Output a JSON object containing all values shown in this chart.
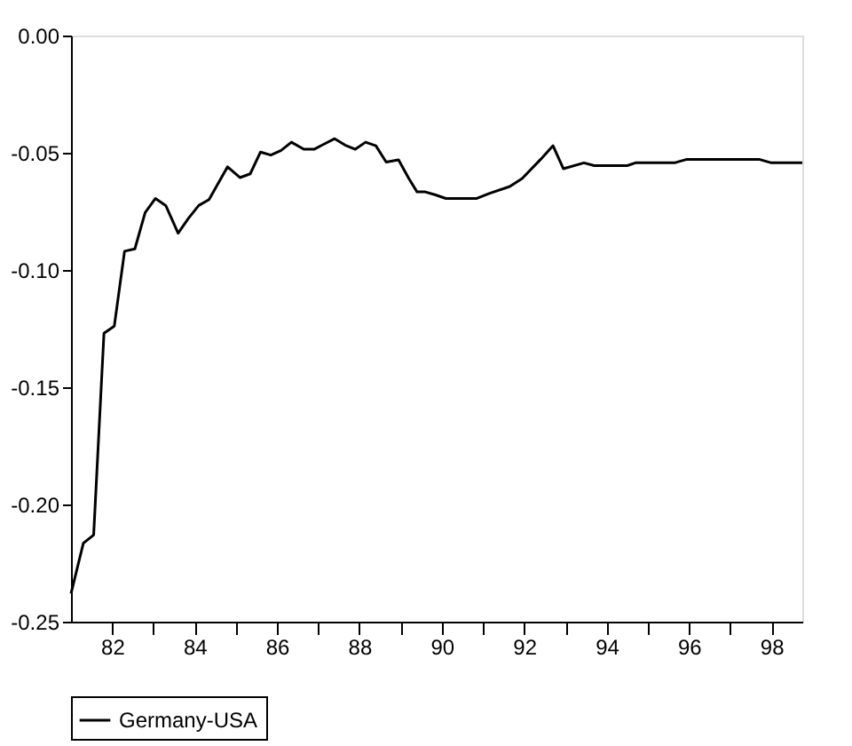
{
  "chart_data": {
    "type": "line",
    "x": [
      81.0,
      81.3,
      81.55,
      81.8,
      82.05,
      82.3,
      82.55,
      82.8,
      83.05,
      83.3,
      83.6,
      83.85,
      84.1,
      84.35,
      84.8,
      85.1,
      85.35,
      85.6,
      85.85,
      86.1,
      86.35,
      86.65,
      86.9,
      87.1,
      87.4,
      87.65,
      87.9,
      88.15,
      88.4,
      88.65,
      88.95,
      89.2,
      89.4,
      89.6,
      89.85,
      90.1,
      90.85,
      91.15,
      91.65,
      91.95,
      92.4,
      92.7,
      92.95,
      93.45,
      93.7,
      94.5,
      94.7,
      95.65,
      95.95,
      97.7,
      98.0,
      98.75
    ],
    "series": [
      {
        "name": "Germany-USA",
        "color": "#000000",
        "values": [
          -0.238,
          -0.2165,
          -0.213,
          -0.127,
          -0.124,
          -0.092,
          -0.091,
          -0.0755,
          -0.0695,
          -0.0725,
          -0.0843,
          -0.078,
          -0.0725,
          -0.07,
          -0.056,
          -0.0606,
          -0.059,
          -0.0497,
          -0.051,
          -0.049,
          -0.0455,
          -0.0485,
          -0.0485,
          -0.0467,
          -0.044,
          -0.0467,
          -0.0485,
          -0.0455,
          -0.047,
          -0.054,
          -0.053,
          -0.061,
          -0.0667,
          -0.0667,
          -0.068,
          -0.0695,
          -0.0695,
          -0.0674,
          -0.0644,
          -0.061,
          -0.0528,
          -0.047,
          -0.0568,
          -0.0543,
          -0.0555,
          -0.0555,
          -0.0543,
          -0.0543,
          -0.0528,
          -0.0528,
          -0.0543,
          -0.0543
        ]
      }
    ],
    "xlim": [
      81.0,
      98.75
    ],
    "xticks": [
      {
        "value": 82,
        "label": "82"
      },
      {
        "value": 83,
        "label": null
      },
      {
        "value": 84,
        "label": "84"
      },
      {
        "value": 85,
        "label": null
      },
      {
        "value": 86,
        "label": "86"
      },
      {
        "value": 87,
        "label": null
      },
      {
        "value": 88,
        "label": "88"
      },
      {
        "value": 89,
        "label": null
      },
      {
        "value": 90,
        "label": "90"
      },
      {
        "value": 91,
        "label": null
      },
      {
        "value": 92,
        "label": "92"
      },
      {
        "value": 93,
        "label": null
      },
      {
        "value": 94,
        "label": "94"
      },
      {
        "value": 95,
        "label": null
      },
      {
        "value": 96,
        "label": "96"
      },
      {
        "value": 97,
        "label": null
      },
      {
        "value": 98,
        "label": "98"
      }
    ],
    "ylim": [
      -0.25,
      0.0
    ],
    "yticks": [
      {
        "value": -0.25,
        "label": "-0.25"
      },
      {
        "value": -0.2,
        "label": "-0.20"
      },
      {
        "value": -0.15,
        "label": "-0.15"
      },
      {
        "value": -0.1,
        "label": "-0.10"
      },
      {
        "value": -0.05,
        "label": "-0.05"
      },
      {
        "value": 0.0,
        "label": "0.00"
      }
    ],
    "grid": false,
    "legend": "bottom",
    "line_style": "solid"
  }
}
